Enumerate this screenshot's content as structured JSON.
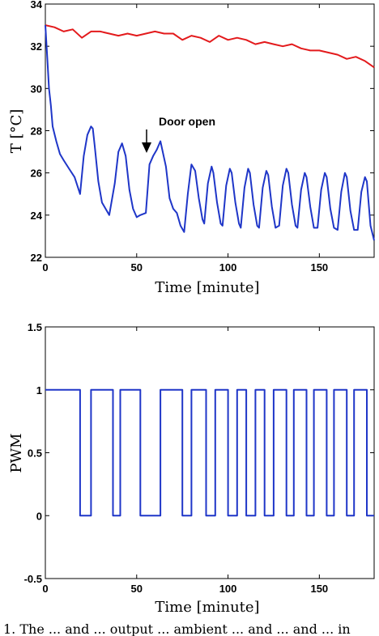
{
  "chart_data": [
    {
      "type": "line",
      "xlabel": "Time [minute]",
      "ylabel": "T [°C]",
      "xlim": [
        0,
        180
      ],
      "ylim": [
        22,
        34
      ],
      "xticks": [
        0,
        50,
        100,
        150
      ],
      "yticks": [
        22,
        24,
        26,
        28,
        30,
        32,
        34
      ],
      "grid": false,
      "annotations": [
        {
          "text": "Door open",
          "x": 57,
          "y": 27
        }
      ],
      "series": [
        {
          "color": "#e31a1c",
          "x": [
            0,
            5,
            10,
            15,
            20,
            25,
            30,
            35,
            40,
            45,
            50,
            55,
            60,
            65,
            70,
            75,
            80,
            85,
            90,
            95,
            100,
            105,
            110,
            115,
            120,
            125,
            130,
            135,
            140,
            145,
            150,
            155,
            160,
            165,
            170,
            175,
            180
          ],
          "y": [
            33.0,
            32.9,
            32.7,
            32.8,
            32.4,
            32.7,
            32.7,
            32.6,
            32.5,
            32.6,
            32.5,
            32.6,
            32.7,
            32.6,
            32.6,
            32.3,
            32.5,
            32.4,
            32.2,
            32.5,
            32.3,
            32.4,
            32.3,
            32.1,
            32.2,
            32.1,
            32.0,
            32.1,
            31.9,
            31.8,
            31.8,
            31.7,
            31.6,
            31.4,
            31.5,
            31.3,
            31.0
          ]
        },
        {
          "color": "#1f36c8",
          "x": [
            0,
            1,
            2,
            3,
            4,
            6,
            8,
            10,
            13,
            16,
            19,
            21,
            23,
            25,
            26,
            27,
            29,
            31,
            33,
            35,
            38,
            40,
            42,
            44,
            46,
            48,
            50,
            52,
            55,
            57,
            59,
            61,
            63,
            66,
            68,
            70,
            72,
            74,
            76,
            78,
            80,
            82,
            84,
            86,
            87,
            89,
            91,
            92,
            94,
            96,
            97,
            99,
            101,
            102,
            104,
            106,
            107,
            109,
            111,
            112,
            114,
            116,
            117,
            119,
            121,
            122,
            124,
            126,
            128,
            130,
            132,
            133,
            135,
            137,
            138,
            140,
            142,
            143,
            145,
            147,
            149,
            151,
            153,
            154,
            156,
            158,
            160,
            162,
            164,
            165,
            167,
            169,
            171,
            173,
            175,
            176,
            178,
            180
          ],
          "y": [
            33.0,
            31.5,
            30.0,
            29.2,
            28.2,
            27.5,
            26.9,
            26.6,
            26.2,
            25.8,
            25.0,
            26.8,
            27.8,
            28.2,
            28.1,
            27.3,
            25.6,
            24.6,
            24.3,
            24.0,
            25.5,
            27.0,
            27.4,
            26.8,
            25.2,
            24.3,
            23.9,
            24.0,
            24.1,
            26.4,
            26.8,
            27.1,
            27.5,
            26.3,
            24.8,
            24.3,
            24.1,
            23.5,
            23.2,
            25.0,
            26.4,
            26.1,
            24.8,
            23.8,
            23.6,
            25.5,
            26.3,
            26.0,
            24.6,
            23.6,
            23.5,
            25.4,
            26.2,
            26.0,
            24.6,
            23.6,
            23.4,
            25.3,
            26.2,
            26.0,
            24.5,
            23.5,
            23.4,
            25.3,
            26.1,
            25.9,
            24.4,
            23.4,
            23.5,
            25.4,
            26.2,
            26.0,
            24.5,
            23.5,
            23.4,
            25.2,
            26.0,
            25.8,
            24.4,
            23.4,
            23.4,
            25.2,
            26.0,
            25.8,
            24.3,
            23.4,
            23.3,
            25.1,
            26.0,
            25.8,
            24.2,
            23.3,
            23.3,
            25.1,
            25.8,
            25.6,
            23.5,
            22.8
          ]
        }
      ]
    },
    {
      "type": "line",
      "xlabel": "Time [minute]",
      "ylabel": "PWM",
      "xlim": [
        0,
        180
      ],
      "ylim": [
        -0.5,
        1.5
      ],
      "xticks": [
        0,
        50,
        100,
        150
      ],
      "yticks": [
        -0.5,
        0,
        0.5,
        1,
        1.5
      ],
      "grid": false,
      "series": [
        {
          "color": "#1f36c8",
          "step": true,
          "x": [
            0,
            19,
            19,
            25,
            25,
            37,
            37,
            41,
            41,
            52,
            52,
            63,
            63,
            75,
            75,
            80,
            80,
            88,
            88,
            93,
            93,
            100,
            100,
            105,
            105,
            110,
            110,
            115,
            115,
            120,
            120,
            125,
            125,
            132,
            132,
            136,
            136,
            143,
            143,
            147,
            147,
            154,
            154,
            158,
            158,
            165,
            165,
            169,
            169,
            176,
            176,
            180
          ],
          "y": [
            1,
            1,
            0,
            0,
            1,
            1,
            0,
            0,
            1,
            1,
            0,
            0,
            1,
            1,
            0,
            0,
            1,
            1,
            0,
            0,
            1,
            1,
            0,
            0,
            1,
            1,
            0,
            0,
            1,
            1,
            0,
            0,
            1,
            1,
            0,
            0,
            1,
            1,
            0,
            0,
            1,
            1,
            0,
            0,
            1,
            1,
            0,
            0,
            1,
            1,
            0,
            0
          ]
        }
      ]
    }
  ],
  "caption": "1. The ... and ... output ... ambient ... and ... and ... in"
}
